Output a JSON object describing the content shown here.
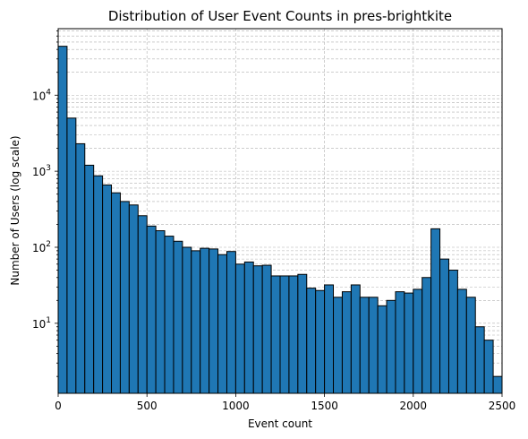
{
  "chart_data": {
    "type": "bar",
    "title": "Distribution of User Event Counts in pres-brightkite",
    "xlabel": "Event count",
    "ylabel": "Number of Users (log scale)",
    "xlim": [
      0,
      2500
    ],
    "ylim": [
      1.2,
      75000
    ],
    "y_scale": "log",
    "grid": "on (major and minor, dashed)",
    "bar_color": "#1f77b4",
    "bar_edge_color": "#000000",
    "bin_width": 50,
    "x_ticks": [
      0,
      500,
      1000,
      1500,
      2000,
      2500
    ],
    "y_ticks": [
      {
        "value": 10,
        "base": "10",
        "exp": "1"
      },
      {
        "value": 100,
        "base": "10",
        "exp": "2"
      },
      {
        "value": 1000,
        "base": "10",
        "exp": "3"
      },
      {
        "value": 10000,
        "base": "10",
        "exp": "4"
      }
    ],
    "bin_starts": [
      0,
      50,
      100,
      150,
      200,
      250,
      300,
      350,
      400,
      450,
      500,
      550,
      600,
      650,
      700,
      750,
      800,
      850,
      900,
      950,
      1000,
      1050,
      1100,
      1150,
      1200,
      1250,
      1300,
      1350,
      1400,
      1450,
      1500,
      1550,
      1600,
      1650,
      1700,
      1750,
      1800,
      1850,
      1900,
      1950,
      2000,
      2050,
      2100,
      2150,
      2200,
      2250,
      2300,
      2350,
      2400,
      2450
    ],
    "values": [
      44000,
      5000,
      2300,
      1200,
      870,
      660,
      520,
      400,
      360,
      260,
      190,
      165,
      140,
      120,
      100,
      90,
      97,
      95,
      80,
      88,
      60,
      64,
      57,
      58,
      42,
      42,
      42,
      44,
      29,
      27,
      32,
      22,
      26,
      32,
      22,
      22,
      17,
      20,
      26,
      25,
      28,
      40,
      175,
      70,
      50,
      28,
      22,
      9,
      6,
      2
    ]
  }
}
